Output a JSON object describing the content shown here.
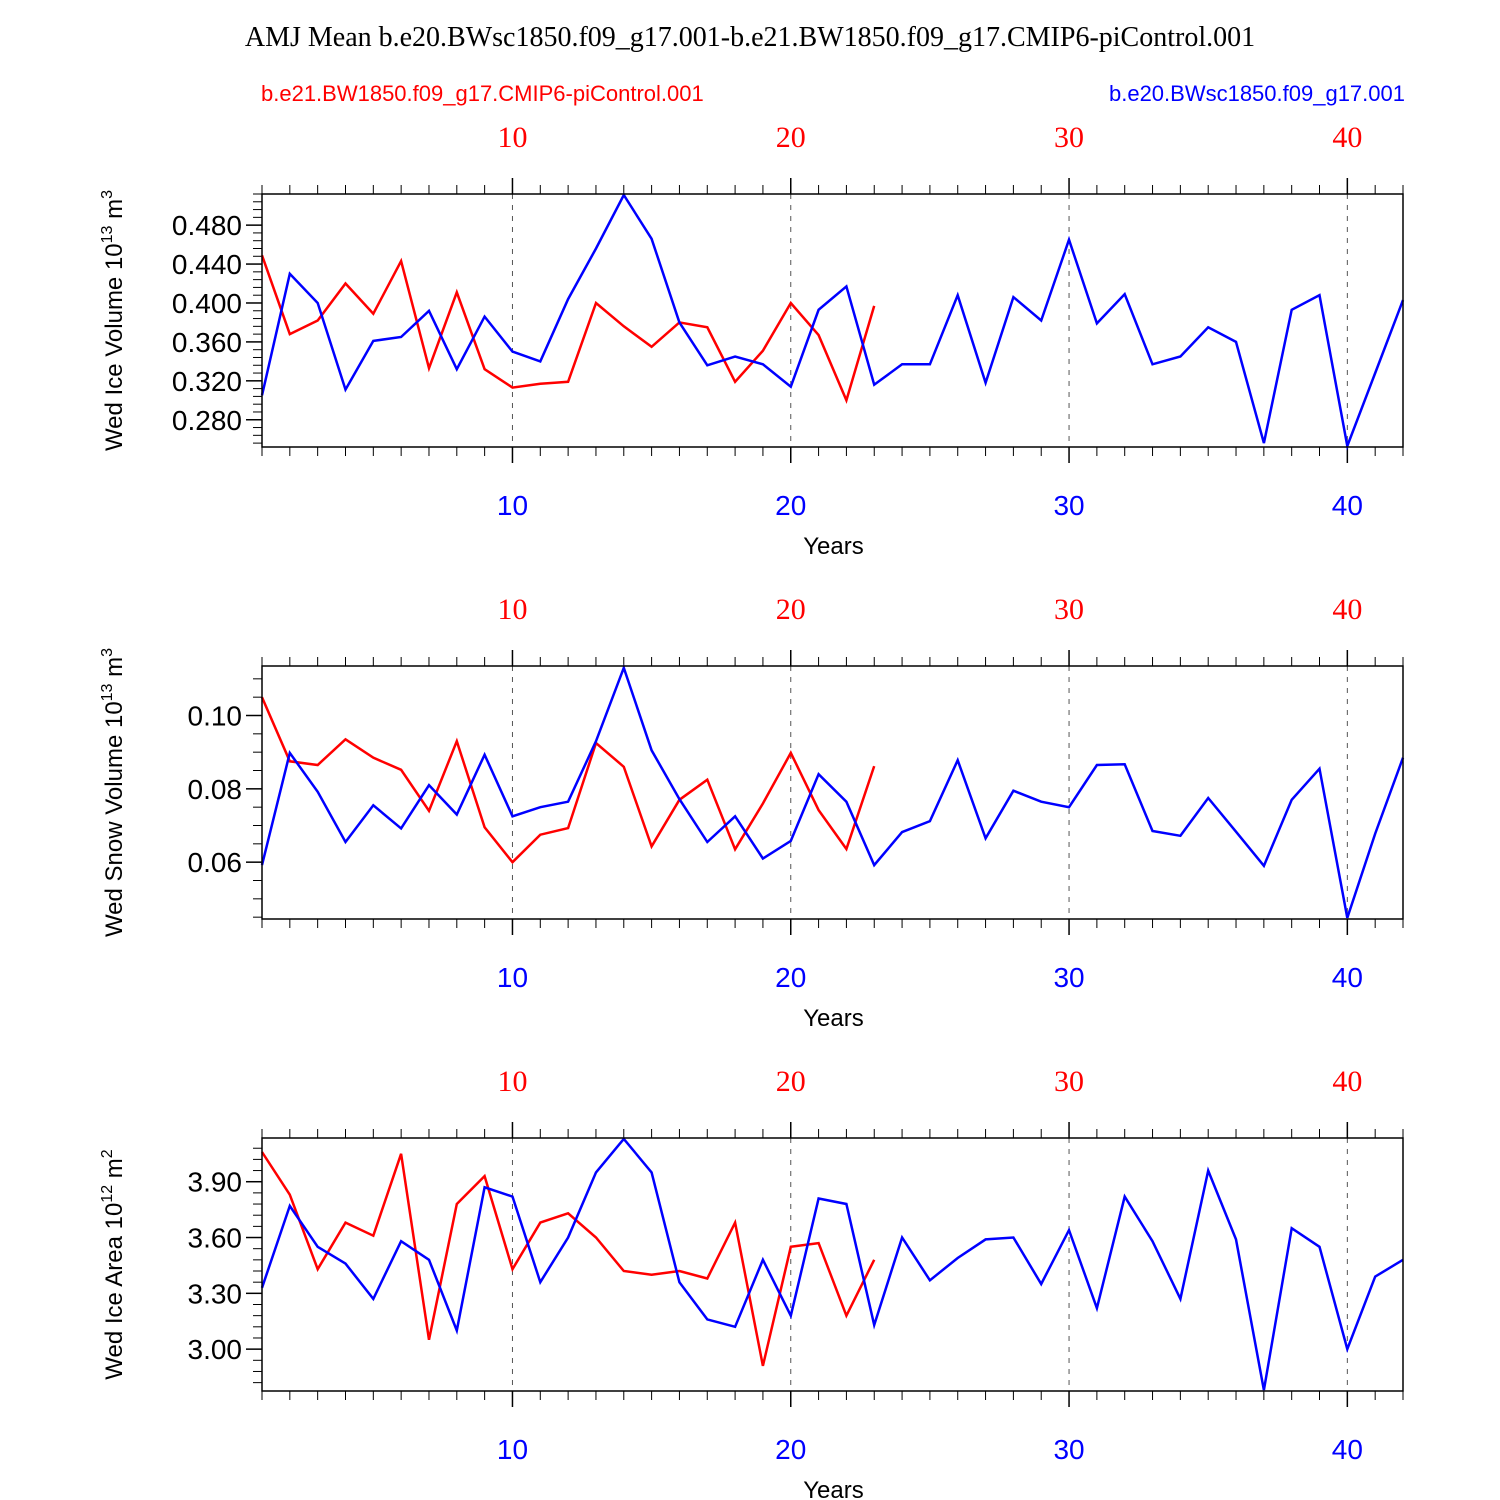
{
  "title": "AMJ Mean b.e20.BWsc1850.f09_g17.001-b.e21.BW1850.f09_g17.CMIP6-piControl.001",
  "legend": {
    "left_label": "b.e21.BW1850.f09_g17.CMIP6-piControl.001",
    "right_label": "b.e20.BWsc1850.f09_g17.001"
  },
  "colors": {
    "red_series": "#ff0000",
    "blue_series": "#0000ff",
    "axes": "#000000"
  },
  "chart_data": [
    {
      "type": "line",
      "ylabel_main": "Wed Ice Volume 10",
      "ylabel_exp": "13",
      "ylabel_unit": " m",
      "ylabel_unit_exp": "3",
      "xlabel": "Years",
      "xlim": [
        1,
        42
      ],
      "ylim": [
        0.252,
        0.512
      ],
      "yticks": [
        0.28,
        0.32,
        0.36,
        0.4,
        0.44,
        0.48
      ],
      "ytick_labels": [
        "0.280",
        "0.320",
        "0.360",
        "0.400",
        "0.440",
        "0.480"
      ],
      "yminor_step": 0.008,
      "xticks": [
        10,
        20,
        30,
        40
      ],
      "xtick_labels": [
        "10",
        "20",
        "30",
        "40"
      ],
      "grid": "dashed vertical at major x ticks",
      "series": [
        {
          "name": "b.e21.BW1850.f09_g17.CMIP6-piControl.001",
          "color": "#ff0000",
          "x": [
            1,
            2,
            3,
            4,
            5,
            6,
            7,
            8,
            9,
            10,
            11,
            12,
            13,
            14,
            15,
            16,
            17,
            18,
            19,
            20,
            21,
            22,
            23
          ],
          "values": [
            0.449,
            0.368,
            0.382,
            0.42,
            0.389,
            0.443,
            0.333,
            0.411,
            0.332,
            0.313,
            0.317,
            0.319,
            0.4,
            0.376,
            0.355,
            0.38,
            0.375,
            0.319,
            0.351,
            0.4,
            0.367,
            0.3,
            0.397
          ]
        },
        {
          "name": "b.e20.BWsc1850.f09_g17.001",
          "color": "#0000ff",
          "x": [
            1,
            2,
            3,
            4,
            5,
            6,
            7,
            8,
            9,
            10,
            11,
            12,
            13,
            14,
            15,
            16,
            17,
            18,
            19,
            20,
            21,
            22,
            23,
            24,
            25,
            26,
            27,
            28,
            29,
            30,
            31,
            32,
            33,
            34,
            35,
            36,
            37,
            38,
            39,
            40,
            41,
            42
          ],
          "values": [
            0.305,
            0.43,
            0.4,
            0.311,
            0.361,
            0.365,
            0.392,
            0.332,
            0.386,
            0.35,
            0.34,
            0.404,
            0.456,
            0.511,
            0.466,
            0.38,
            0.336,
            0.345,
            0.337,
            0.314,
            0.393,
            0.417,
            0.316,
            0.337,
            0.337,
            0.408,
            0.318,
            0.406,
            0.382,
            0.465,
            0.379,
            0.409,
            0.337,
            0.345,
            0.375,
            0.36,
            0.256,
            0.393,
            0.408,
            0.253,
            0.328,
            0.403
          ]
        }
      ]
    },
    {
      "type": "line",
      "ylabel_main": "Wed Snow Volume 10",
      "ylabel_exp": "13",
      "ylabel_unit": " m",
      "ylabel_unit_exp": "3",
      "xlabel": "Years",
      "xlim": [
        1,
        42
      ],
      "ylim": [
        0.0445,
        0.1135
      ],
      "yticks": [
        0.06,
        0.08,
        0.1
      ],
      "ytick_labels": [
        "0.06",
        "0.08",
        "0.10"
      ],
      "yminor_step": 0.005,
      "xticks": [
        10,
        20,
        30,
        40
      ],
      "xtick_labels": [
        "10",
        "20",
        "30",
        "40"
      ],
      "grid": "dashed vertical at major x ticks",
      "series": [
        {
          "name": "b.e21.BW1850.f09_g17.CMIP6-piControl.001",
          "color": "#ff0000",
          "x": [
            1,
            2,
            3,
            4,
            5,
            6,
            7,
            8,
            9,
            10,
            11,
            12,
            13,
            14,
            15,
            16,
            17,
            18,
            19,
            20,
            21,
            22,
            23
          ],
          "values": [
            0.105,
            0.0875,
            0.0865,
            0.0935,
            0.0885,
            0.0852,
            0.074,
            0.093,
            0.0695,
            0.06,
            0.0675,
            0.0693,
            0.0925,
            0.086,
            0.0643,
            0.077,
            0.0825,
            0.0635,
            0.076,
            0.0898,
            0.0742,
            0.0636,
            0.0862
          ]
        },
        {
          "name": "b.e20.BWsc1850.f09_g17.001",
          "color": "#0000ff",
          "x": [
            1,
            2,
            3,
            4,
            5,
            6,
            7,
            8,
            9,
            10,
            11,
            12,
            13,
            14,
            15,
            16,
            17,
            18,
            19,
            20,
            21,
            22,
            23,
            24,
            25,
            26,
            27,
            28,
            29,
            30,
            31,
            32,
            33,
            34,
            35,
            36,
            37,
            38,
            39,
            40,
            41,
            42
          ],
          "values": [
            0.0592,
            0.0898,
            0.0792,
            0.0655,
            0.0755,
            0.0692,
            0.081,
            0.073,
            0.0893,
            0.0725,
            0.075,
            0.0765,
            0.093,
            0.113,
            0.0905,
            0.0772,
            0.0655,
            0.0725,
            0.061,
            0.0658,
            0.084,
            0.0765,
            0.0592,
            0.0682,
            0.0712,
            0.0878,
            0.0665,
            0.0795,
            0.0765,
            0.075,
            0.0865,
            0.0867,
            0.0685,
            0.0672,
            0.0775,
            0.0683,
            0.059,
            0.077,
            0.0855,
            0.0448,
            0.0678,
            0.0885
          ]
        }
      ]
    },
    {
      "type": "line",
      "ylabel_main": "Wed Ice Area 10",
      "ylabel_exp": "12",
      "ylabel_unit": " m",
      "ylabel_unit_exp": "2",
      "xlabel": "Years",
      "xlim": [
        1,
        42
      ],
      "ylim": [
        2.775,
        4.135
      ],
      "yticks": [
        3.0,
        3.3,
        3.6,
        3.9
      ],
      "ytick_labels": [
        "3.00",
        "3.30",
        "3.60",
        "3.90"
      ],
      "yminor_step": 0.06,
      "xticks": [
        10,
        20,
        30,
        40
      ],
      "xtick_labels": [
        "10",
        "20",
        "30",
        "40"
      ],
      "grid": "dashed vertical at major x ticks",
      "series": [
        {
          "name": "b.e21.BW1850.f09_g17.CMIP6-piControl.001",
          "color": "#ff0000",
          "x": [
            1,
            2,
            3,
            4,
            5,
            6,
            7,
            8,
            9,
            10,
            11,
            12,
            13,
            14,
            15,
            16,
            17,
            18,
            19,
            20,
            21,
            22,
            23
          ],
          "values": [
            4.06,
            3.83,
            3.43,
            3.68,
            3.61,
            4.05,
            3.05,
            3.78,
            3.93,
            3.43,
            3.68,
            3.73,
            3.6,
            3.42,
            3.4,
            3.42,
            3.38,
            3.68,
            2.91,
            3.55,
            3.57,
            3.18,
            3.48
          ]
        },
        {
          "name": "b.e20.BWsc1850.f09_g17.001",
          "color": "#0000ff",
          "x": [
            1,
            2,
            3,
            4,
            5,
            6,
            7,
            8,
            9,
            10,
            11,
            12,
            13,
            14,
            15,
            16,
            17,
            18,
            19,
            20,
            21,
            22,
            23,
            24,
            25,
            26,
            27,
            28,
            29,
            30,
            31,
            32,
            33,
            34,
            35,
            36,
            37,
            38,
            39,
            40,
            41,
            42
          ],
          "values": [
            3.33,
            3.77,
            3.55,
            3.46,
            3.27,
            3.58,
            3.48,
            3.1,
            3.87,
            3.82,
            3.36,
            3.6,
            3.95,
            4.13,
            3.95,
            3.36,
            3.16,
            3.12,
            3.48,
            3.18,
            3.81,
            3.78,
            3.13,
            3.6,
            3.37,
            3.49,
            3.59,
            3.6,
            3.35,
            3.64,
            3.22,
            3.82,
            3.58,
            3.27,
            3.96,
            3.59,
            2.78,
            3.65,
            3.55,
            3.0,
            3.39,
            3.48
          ]
        }
      ]
    }
  ]
}
